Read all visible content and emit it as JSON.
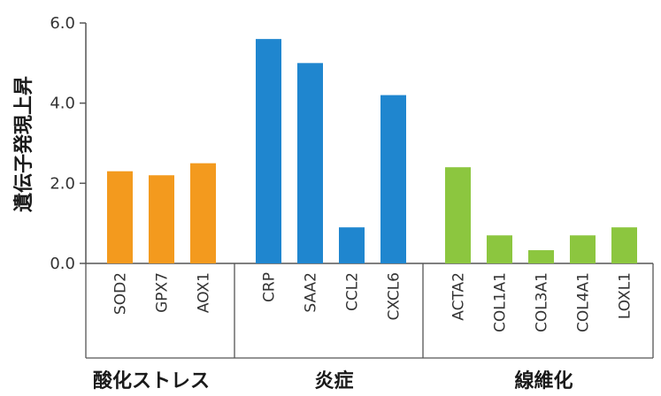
{
  "chart_data": {
    "type": "bar",
    "ylabel": "遺伝子発現上昇",
    "xlabel": "",
    "ylim": [
      0,
      6
    ],
    "yticks": [
      "0.0",
      "2.0",
      "4.0",
      "6.0"
    ],
    "grid": false,
    "categories": [
      "SOD2",
      "GPX7",
      "AOX1",
      "CRP",
      "SAA2",
      "CCL2",
      "CXCL6",
      "ACTA2",
      "COL1A1",
      "COL3A1",
      "COL4A1",
      "LOXL1"
    ],
    "groups": [
      {
        "name": "酸化ストレス",
        "color": "#F39A1E",
        "categories": [
          "SOD2",
          "GPX7",
          "AOX1"
        ],
        "values": [
          2.3,
          2.2,
          2.5
        ]
      },
      {
        "name": "炎症",
        "color": "#1F86CF",
        "categories": [
          "CRP",
          "SAA2",
          "CCL2",
          "CXCL6"
        ],
        "values": [
          5.6,
          5.0,
          0.9,
          4.2
        ]
      },
      {
        "name": "線維化",
        "color": "#8CC63F",
        "categories": [
          "ACTA2",
          "COL1A1",
          "COL3A1",
          "COL4A1",
          "LOXL1"
        ],
        "values": [
          2.4,
          0.7,
          0.33,
          0.7,
          0.9
        ]
      }
    ]
  }
}
